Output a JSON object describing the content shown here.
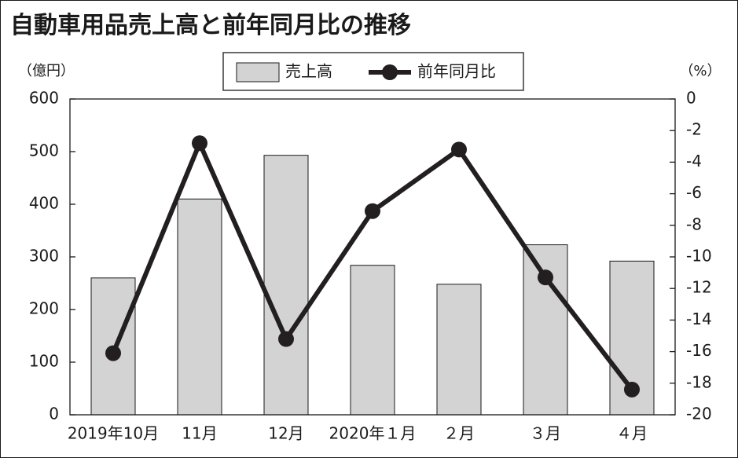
{
  "title": "自動車用品売上高と前年同月比の推移",
  "chart_data": {
    "type": "bar+line",
    "title": "自動車用品売上高と前年同月比の推移",
    "categories": [
      "2019年10月",
      "11月",
      "12月",
      "2020年１月",
      "２月",
      "３月",
      "４月"
    ],
    "series": [
      {
        "name": "売上高",
        "type": "bar",
        "axis": "left",
        "color": "#d3d3d3",
        "values": [
          260,
          410,
          493,
          284,
          248,
          323,
          292
        ]
      },
      {
        "name": "前年同月比",
        "type": "line",
        "axis": "right",
        "color": "#231f20",
        "values": [
          -16.1,
          -2.8,
          -15.2,
          -7.1,
          -3.2,
          -11.3,
          -18.4
        ]
      }
    ],
    "y_left": {
      "unit_label": "（億円）",
      "range": [
        0,
        600
      ],
      "ticks": [
        "0",
        "100",
        "200",
        "300",
        "400",
        "500",
        "600"
      ]
    },
    "y_right": {
      "unit_label": "（%）",
      "range": [
        -20,
        0
      ],
      "ticks": [
        "0",
        "-2",
        "-4",
        "-6",
        "-8",
        "-10",
        "-12",
        "-14",
        "-16",
        "-18",
        "-20"
      ]
    },
    "legend": {
      "position": "top-center",
      "bar_label": "売上高",
      "line_label": "前年同月比"
    },
    "grid": false
  }
}
